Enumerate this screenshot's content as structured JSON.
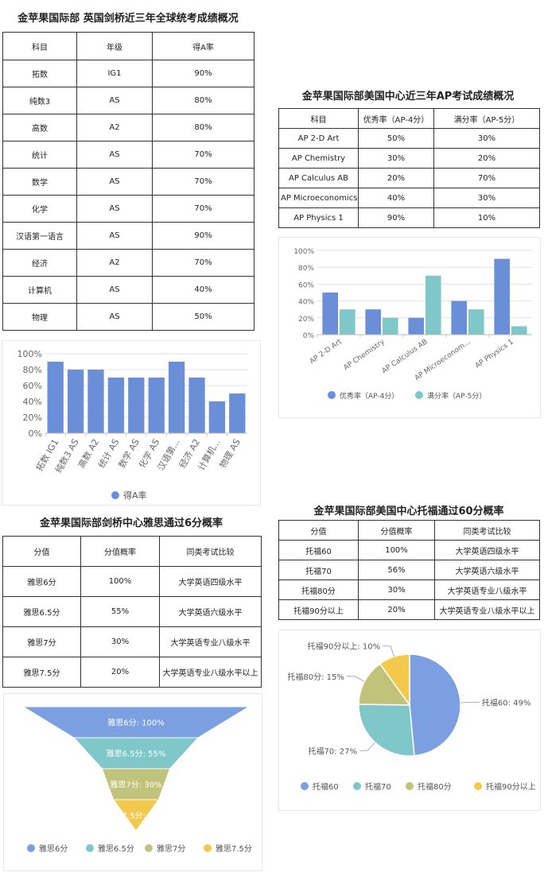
{
  "panel_uk": {
    "title": "金苹果国际部 英国剑桥近三年全球统考成绩概况",
    "headers": [
      "科目",
      "年级",
      "得A率"
    ],
    "rows": [
      [
        "拓数",
        "IG1",
        "90%"
      ],
      [
        "纯数3",
        "AS",
        "80%"
      ],
      [
        "高数",
        "A2",
        "80%"
      ],
      [
        "统计",
        "AS",
        "70%"
      ],
      [
        "数学",
        "AS",
        "70%"
      ],
      [
        "化学",
        "AS",
        "70%"
      ],
      [
        "汉语第一语言",
        "AS",
        "90%"
      ],
      [
        "经济",
        "A2",
        "70%"
      ],
      [
        "计算机",
        "AS",
        "40%"
      ],
      [
        "物理",
        "AS",
        "50%"
      ]
    ]
  },
  "panel_ap": {
    "title": "金苹果国际部美国中心近三年AP考试成绩概况",
    "headers": [
      "科目",
      "优秀率（AP-4分）",
      "满分率（AP-5分）"
    ],
    "rows": [
      [
        "AP 2-D Art",
        "50%",
        "30%"
      ],
      [
        "AP Chemistry",
        "30%",
        "20%"
      ],
      [
        "AP Calculus AB",
        "20%",
        "70%"
      ],
      [
        "AP Microeconomics",
        "40%",
        "30%"
      ],
      [
        "AP Physics 1",
        "90%",
        "10%"
      ]
    ]
  },
  "panel_ielts": {
    "title": "金苹果国际部剑桥中心雅思通过6分概率",
    "headers": [
      "分值",
      "分值概率",
      "同类考试比较"
    ],
    "rows": [
      [
        "雅思6分",
        "100%",
        "大学英语四级水平"
      ],
      [
        "雅思6.5分",
        "55%",
        "大学英语六级水平"
      ],
      [
        "雅思7分",
        "30%",
        "大学英语专业八级水平"
      ],
      [
        "雅思7.5分",
        "20%",
        "大学英语专业八级水平以上"
      ]
    ]
  },
  "panel_toefl": {
    "title": "金苹果国际部美国中心托福通过60分概率",
    "headers": [
      "分值",
      "分值概率",
      "同类考试比较"
    ],
    "rows": [
      [
        "托福60",
        "100%",
        "大学英语四级水平"
      ],
      [
        "托福70",
        "56%",
        "大学英语六级水平"
      ],
      [
        "托福80分",
        "30%",
        "大学英语专业八级水平"
      ],
      [
        "托福90分以上",
        "20%",
        "大学英语专业八级水平以上"
      ]
    ]
  },
  "chart_data": [
    {
      "type": "bar",
      "categories": [
        "拓数 IG1",
        "纯数3 AS",
        "高数 A2",
        "统计 AS",
        "数学 AS",
        "化学 AS",
        "汉语第...",
        "经济 A2",
        "计算机...",
        "物理 AS"
      ],
      "series": [
        {
          "name": "得A率",
          "values": [
            90,
            80,
            80,
            70,
            70,
            70,
            90,
            70,
            40,
            50
          ],
          "color": "#6a8fd8"
        }
      ],
      "yticks": [
        "0%",
        "20%",
        "40%",
        "60%",
        "80%",
        "100%"
      ],
      "ylim": [
        0,
        100
      ],
      "grid": true,
      "legend": "bottom"
    },
    {
      "type": "bar",
      "categories": [
        "AP 2-D Art",
        "AP Chemistry",
        "AP Calculus AB",
        "AP Microeconom...",
        "AP Physics 1"
      ],
      "series": [
        {
          "name": "优秀率（AP-4分）",
          "values": [
            50,
            30,
            20,
            40,
            90
          ],
          "color": "#6a8fd8"
        },
        {
          "name": "满分率（AP-5分）",
          "values": [
            30,
            20,
            70,
            30,
            10
          ],
          "color": "#7fc7c8"
        }
      ],
      "yticks": [
        "0%",
        "20%",
        "40%",
        "60%",
        "80%",
        "100%"
      ],
      "ylim": [
        0,
        100
      ],
      "grid": true,
      "legend": "bottom"
    },
    {
      "type": "funnel",
      "categories": [
        "雅思6分",
        "雅思6.5分",
        "雅思7分",
        "雅思7.5分"
      ],
      "values": [
        100,
        55,
        30,
        20
      ],
      "labels": [
        "雅思6分: 100%",
        "雅思6.5分: 55%",
        "雅思7分: 30%",
        "雅思7.5分: 20%"
      ],
      "colors": [
        "#7b9fe0",
        "#7fc7c8",
        "#c2c37a",
        "#f2c94c"
      ],
      "legend": "bottom"
    },
    {
      "type": "pie",
      "categories": [
        "托福60",
        "托福70",
        "托福80分",
        "托福90分以上"
      ],
      "values": [
        49,
        27,
        15,
        10
      ],
      "labels": [
        "托福60: 49%",
        "托福70: 27%",
        "托福80分: 15%",
        "托福90分以上: 10%"
      ],
      "colors": [
        "#7b9fe0",
        "#7fc7c8",
        "#c2c37a",
        "#f2c94c"
      ],
      "legend": "bottom"
    }
  ]
}
